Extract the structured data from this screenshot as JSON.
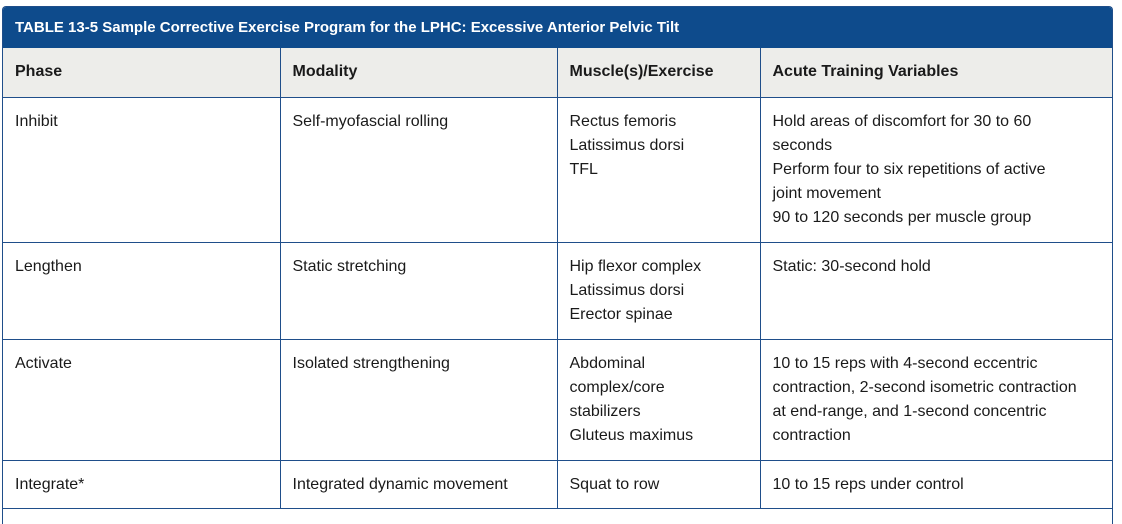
{
  "table": {
    "caption": "TABLE 13-5 Sample Corrective Exercise Program for the LPHC: Excessive Anterior Pelvic Tilt",
    "headers": [
      "Phase",
      "Modality",
      "Muscle(s)/Exercise",
      "Acute Training Variables"
    ],
    "rows": [
      {
        "phase": "Inhibit",
        "modality": "Self-myofascial rolling",
        "muscles": [
          "Rectus femoris",
          "Latissimus dorsi",
          "TFL"
        ],
        "variables": [
          "Hold areas of discomfort for 30 to 60",
          "seconds",
          "Perform four to six repetitions of active",
          "joint movement",
          "90 to 120 seconds per muscle group"
        ]
      },
      {
        "phase": "Lengthen",
        "modality": "Static stretching",
        "muscles": [
          "Hip flexor complex",
          "Latissimus dorsi",
          "Erector spinae"
        ],
        "variables": [
          "Static: 30-second hold"
        ]
      },
      {
        "phase": "Activate",
        "modality": "Isolated strengthening",
        "muscles": [
          "Abdominal",
          "complex/core",
          "stabilizers",
          "Gluteus maximus"
        ],
        "variables": [
          "10 to 15 reps with 4-second eccentric",
          "contraction, 2-second isometric contraction",
          "at end-range, and 1-second concentric",
          "contraction"
        ]
      },
      {
        "phase": "Integrate*",
        "modality": "Integrated dynamic movement",
        "muscles": [
          "Squat to row"
        ],
        "variables": [
          "10 to 15 reps under control"
        ]
      }
    ]
  }
}
